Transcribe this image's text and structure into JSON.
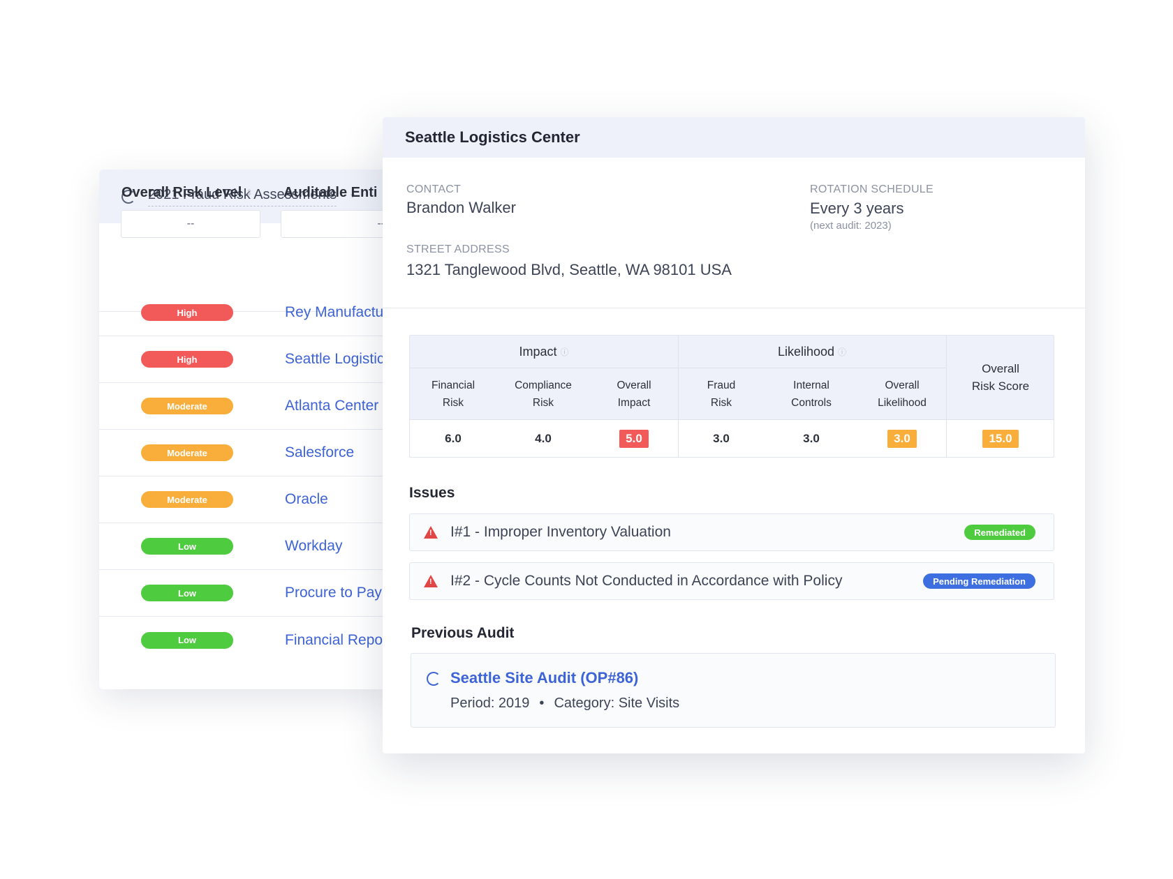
{
  "list": {
    "title": "2021 Fraud Risk Assessments",
    "col_risk": "Overall Risk Level",
    "col_entity": "Auditable Enti",
    "filter_risk": "--",
    "filter_entity": "--",
    "rows": [
      {
        "level": "High",
        "entity": "Rey Manufactu",
        "color": "#f25a5a"
      },
      {
        "level": "High",
        "entity": "Seattle Logistic",
        "color": "#f25a5a"
      },
      {
        "level": "Moderate",
        "entity": "Atlanta Center",
        "color": "#f9ae3b"
      },
      {
        "level": "Moderate",
        "entity": "Salesforce",
        "color": "#f9ae3b"
      },
      {
        "level": "Moderate",
        "entity": "Oracle",
        "color": "#f9ae3b"
      },
      {
        "level": "Low",
        "entity": "Workday",
        "color": "#4fcb3f"
      },
      {
        "level": "Low",
        "entity": "Procure to Pay",
        "color": "#4fcb3f"
      },
      {
        "level": "Low",
        "entity": "Financial Repo",
        "color": "#4fcb3f"
      }
    ]
  },
  "detail": {
    "title": "Seattle Logistics Center",
    "contact_label": "CONTACT",
    "contact_value": "Brandon Walker",
    "rotation_label": "ROTATION SCHEDULE",
    "rotation_value": "Every 3 years",
    "rotation_sub": "(next audit: 2023)",
    "address_label": "STREET ADDRESS",
    "address_value": "1321 Tanglewood Blvd, Seattle, WA 98101 USA",
    "table": {
      "impact_label": "Impact",
      "likelihood_label": "Likelihood",
      "overall_label_1": "Overall",
      "overall_label_2": "Risk Score",
      "cols": [
        {
          "l1": "Financial",
          "l2": "Risk",
          "value": "6.0"
        },
        {
          "l1": "Compliance",
          "l2": "Risk",
          "value": "4.0"
        },
        {
          "l1": "Overall",
          "l2": "Impact",
          "value": "5.0"
        },
        {
          "l1": "Fraud",
          "l2": "Risk",
          "value": "3.0"
        },
        {
          "l1": "Internal",
          "l2": "Controls",
          "value": "3.0"
        },
        {
          "l1": "Overall",
          "l2": "Likelihood",
          "value": "3.0"
        }
      ],
      "overall_value": "15.0",
      "chip_red": "#f25a5a",
      "chip_orange": "#f9ae3b"
    },
    "issues_title": "Issues",
    "issues": [
      {
        "text": "I#1 - Improper Inventory Valuation",
        "status": "Remediated",
        "status_color": "#4fcb3f"
      },
      {
        "text": "I#2 - Cycle Counts Not Conducted in Accordance with Policy",
        "status": "Pending Remediation",
        "status_color": "#3d6fe0"
      }
    ],
    "previous_title": "Previous Audit",
    "previous": {
      "name": "Seattle Site Audit (OP#86)",
      "period": "Period: 2019",
      "separator": "•",
      "category": "Category: Site Visits"
    }
  }
}
